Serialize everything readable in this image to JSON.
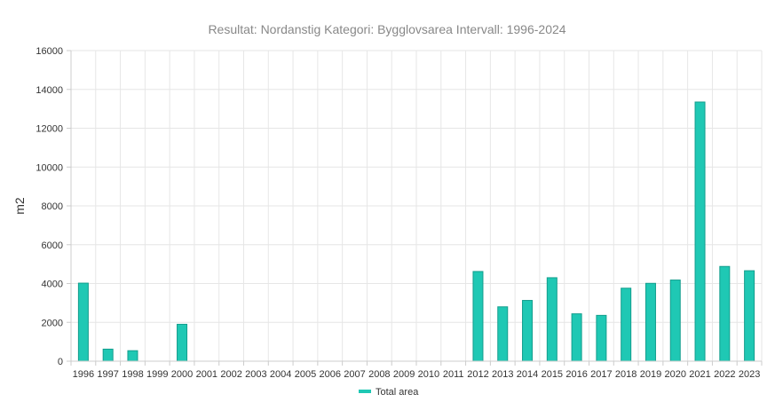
{
  "chart_data": {
    "type": "bar",
    "title": "Resultat: Nordanstig Kategori: Bygglovsarea Intervall: 1996-2024",
    "xlabel": "",
    "ylabel": "m2",
    "ylim": [
      0,
      16000
    ],
    "yticks": [
      0,
      2000,
      4000,
      6000,
      8000,
      10000,
      12000,
      14000,
      16000
    ],
    "grid": true,
    "legend_position": "bottom",
    "categories": [
      "1996",
      "1997",
      "1998",
      "1999",
      "2000",
      "2001",
      "2002",
      "2003",
      "2004",
      "2005",
      "2006",
      "2007",
      "2008",
      "2009",
      "2010",
      "2011",
      "2012",
      "2013",
      "2014",
      "2015",
      "2016",
      "2017",
      "2018",
      "2019",
      "2020",
      "2021",
      "2022",
      "2023"
    ],
    "series": [
      {
        "name": "Total area",
        "color": "#1fc8b4",
        "values": [
          4020,
          620,
          540,
          0,
          1900,
          0,
          0,
          0,
          0,
          0,
          0,
          0,
          0,
          0,
          0,
          0,
          4620,
          2800,
          3130,
          4300,
          2440,
          2360,
          3760,
          4010,
          4180,
          13350,
          4880,
          4660
        ]
      }
    ]
  }
}
